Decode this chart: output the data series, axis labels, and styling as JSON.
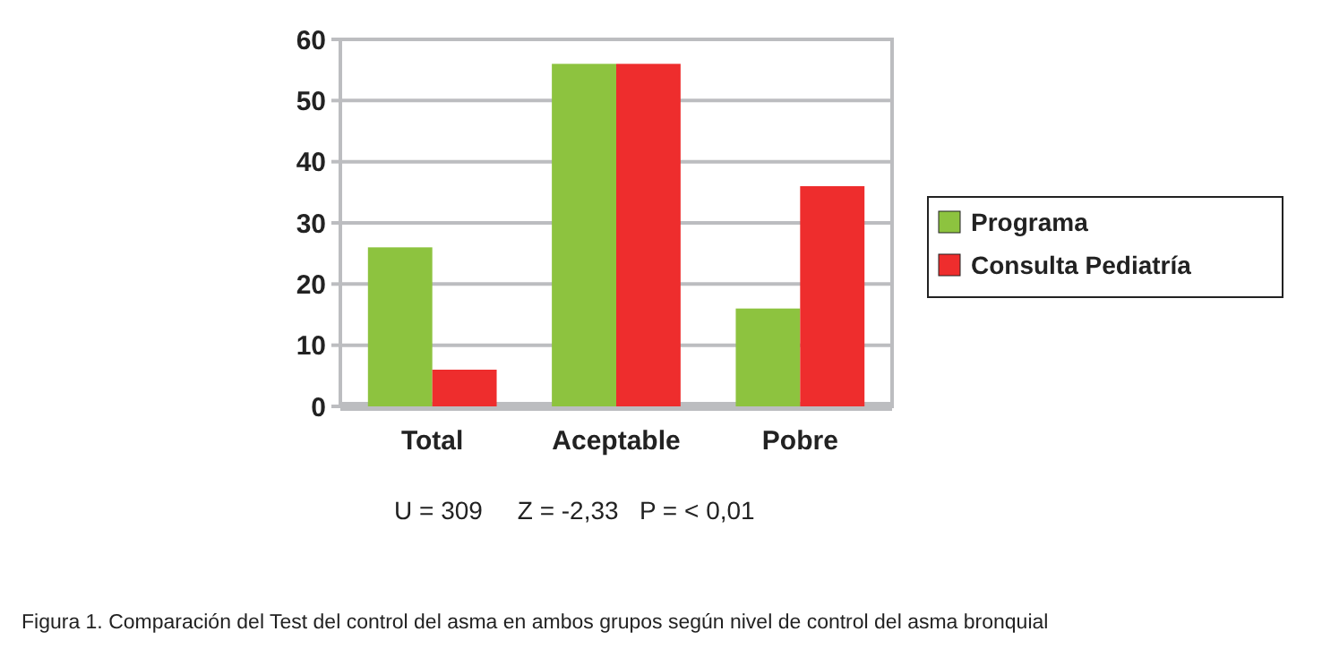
{
  "chart_data": {
    "type": "bar",
    "categories": [
      "Total",
      "Aceptable",
      "Pobre"
    ],
    "series": [
      {
        "name": "Programa",
        "color": "#8dc33f",
        "values": [
          26,
          56,
          16
        ]
      },
      {
        "name": "Consulta Pediatría",
        "color": "#ee2d2d",
        "values": [
          6,
          56,
          36
        ]
      }
    ],
    "ylim": [
      0,
      60
    ],
    "yticks": [
      0,
      10,
      20,
      30,
      40,
      50,
      60
    ],
    "grid": "y",
    "legend": "right",
    "annotations": [
      "U = 309     Z = -2,33   P = < 0,01",
      "Figura 1. Comparación del Test del control del asma en ambos grupos según nivel de control del asma bronquial"
    ]
  }
}
